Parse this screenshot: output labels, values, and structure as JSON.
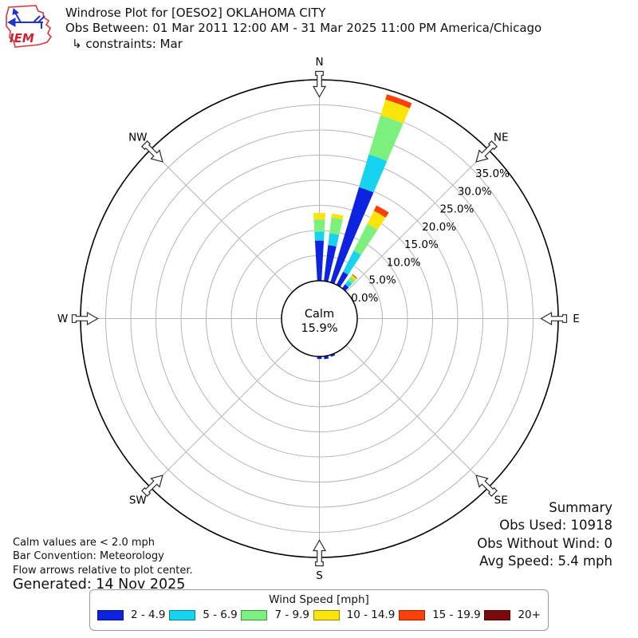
{
  "header": {
    "title": "Windrose Plot for [OESO2] OKLAHOMA CITY",
    "subtitle": "Obs Between: 01 Mar 2011 12:00 AM - 31 Mar 2025 11:00 PM America/Chicago",
    "constraints": "↳ constraints: Mar",
    "logo_text": "IEM"
  },
  "plot": {
    "compass_labels": [
      {
        "label": "N",
        "angle": 0
      },
      {
        "label": "NE",
        "angle": 45
      },
      {
        "label": "E",
        "angle": 90
      },
      {
        "label": "SE",
        "angle": 135
      },
      {
        "label": "S",
        "angle": 180
      },
      {
        "label": "SW",
        "angle": 225
      },
      {
        "label": "W",
        "angle": 270
      },
      {
        "label": "NW",
        "angle": 315
      }
    ],
    "ring_labels": [
      "0.0%",
      "5.0%",
      "10.0%",
      "15.0%",
      "20.0%",
      "25.0%",
      "30.0%",
      "35.0%"
    ],
    "calm": {
      "label": "Calm",
      "value": "15.9%"
    }
  },
  "chart_data": {
    "type": "bar",
    "subtype": "windrose-polar-stacked",
    "units": "percent frequency by wind direction",
    "direction_sectors": 36,
    "bar_angular_width_deg": 6.5,
    "rings_percent": [
      0,
      5,
      10,
      15,
      20,
      25,
      30,
      35
    ],
    "outer_boundary_percent": 40,
    "calm_percent": 15.9,
    "speed_bins": [
      {
        "label": "2 - 4.9",
        "color": "#0d23e0"
      },
      {
        "label": "5 - 6.9",
        "color": "#16d4f0"
      },
      {
        "label": "7 - 9.9",
        "color": "#7cf07c"
      },
      {
        "label": "10 - 14.9",
        "color": "#fbe40c"
      },
      {
        "label": "15 - 19.9",
        "color": "#fb400a"
      },
      {
        "label": "20+",
        "color": "#7d0a0a"
      }
    ],
    "bars": [
      {
        "direction_deg": 0,
        "values": [
          8.0,
          1.8,
          2.4,
          1.3,
          0,
          0
        ]
      },
      {
        "direction_deg": 10,
        "values": [
          7.2,
          2.4,
          3.1,
          0.8,
          0,
          0
        ]
      },
      {
        "direction_deg": 20,
        "values": [
          19.8,
          6.8,
          8.1,
          3.3,
          1.1,
          0
        ]
      },
      {
        "direction_deg": 30,
        "values": [
          2.9,
          4.7,
          6.0,
          2.9,
          1.2,
          0
        ]
      },
      {
        "direction_deg": 40,
        "values": [
          1.0,
          1.0,
          0.9,
          0.4,
          0.2,
          0
        ]
      },
      {
        "direction_deg": 160,
        "values": [
          0.4,
          0,
          0,
          0,
          0,
          0
        ]
      },
      {
        "direction_deg": 170,
        "values": [
          0.6,
          0,
          0,
          0,
          0,
          0
        ]
      },
      {
        "direction_deg": 180,
        "values": [
          0.5,
          0,
          0,
          0,
          0,
          0
        ]
      }
    ]
  },
  "legend": {
    "title": "Wind Speed [mph]"
  },
  "footnotes": {
    "line1": "Calm values are < 2.0 mph",
    "line2": "Bar Convention: Meteorology",
    "line3": "Flow arrows relative to plot center.",
    "generated": "Generated: 14 Nov 2025"
  },
  "summary": {
    "title": "Summary",
    "obs_used": "Obs Used: 10918",
    "obs_without_wind": "Obs Without Wind: 0",
    "avg_speed": "Avg Speed: 5.4 mph"
  }
}
